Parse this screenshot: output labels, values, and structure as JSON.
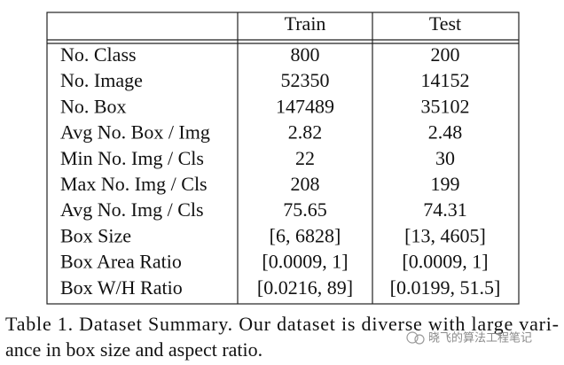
{
  "table": {
    "header": [
      "Train",
      "Test"
    ],
    "rows": [
      [
        "No. Class",
        "800",
        "200"
      ],
      [
        "No. Image",
        "52350",
        "14152"
      ],
      [
        "No. Box",
        "147489",
        "35102"
      ],
      [
        "Avg No. Box / Img",
        "2.82",
        "2.48"
      ],
      [
        "Min No. Img / Cls",
        "22",
        "30"
      ],
      [
        "Max No. Img / Cls",
        "208",
        "199"
      ],
      [
        "Avg No. Img / Cls",
        "75.65",
        "74.31"
      ],
      [
        "Box Size",
        "[6, 6828]",
        "[13, 4605]"
      ],
      [
        "Box Area Ratio",
        "[0.0009, 1]",
        "[0.0009, 1]"
      ],
      [
        "Box W/H Ratio",
        "[0.0216, 89]",
        "[0.0199, 51.5]"
      ]
    ]
  },
  "caption": {
    "lines": [
      "Table 1. Dataset Summary. Our dataset is diverse with large vari-",
      "ance in box size and aspect ratio."
    ]
  },
  "watermark": "晓飞的算法工程笔记"
}
